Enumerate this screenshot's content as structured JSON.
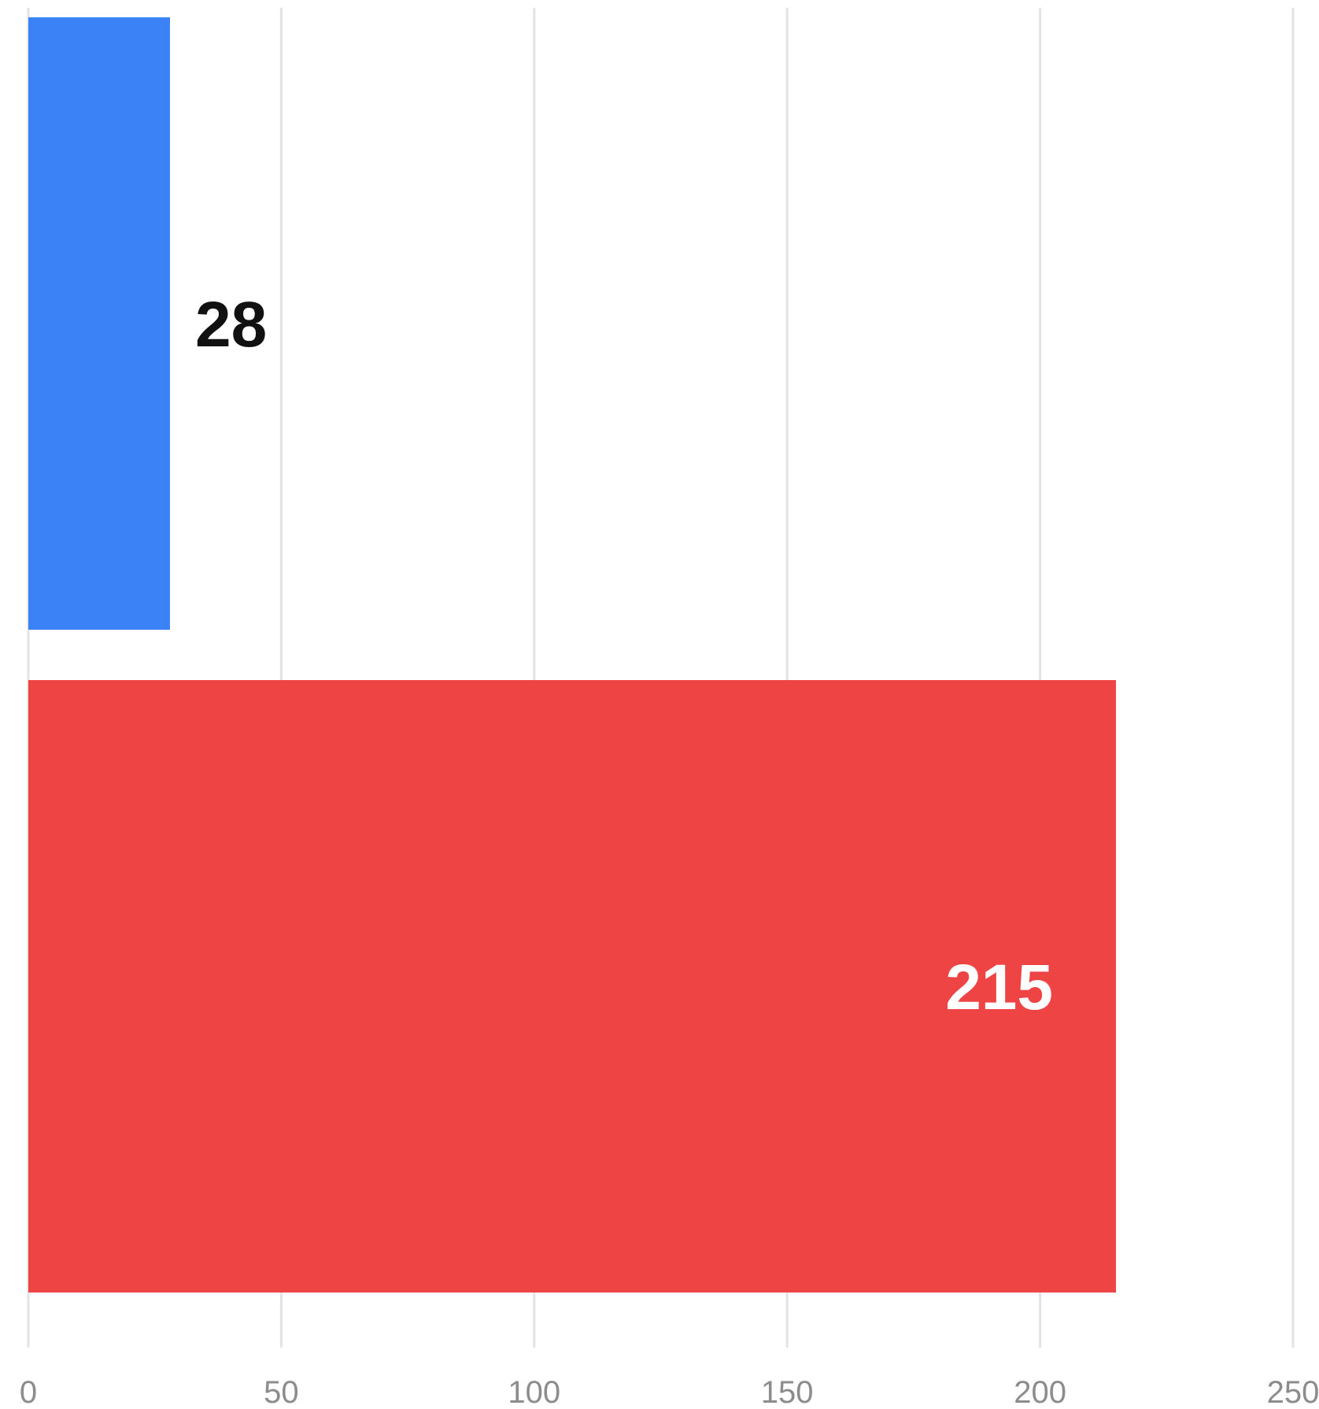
{
  "chart_data": {
    "type": "bar",
    "orientation": "horizontal",
    "title": "",
    "xlabel": "",
    "ylabel": "",
    "xlim": [
      0,
      250
    ],
    "x_ticks": [
      0,
      50,
      100,
      150,
      200,
      250
    ],
    "x_tick_labels": [
      "0",
      "50",
      "100",
      "150",
      "200",
      "250"
    ],
    "grid": "vertical",
    "bars": [
      {
        "value": 28,
        "label": "28",
        "color": "#3b82f6",
        "label_color": "#111111",
        "label_position": "outside"
      },
      {
        "value": 215,
        "label": "215",
        "color": "#ef4444",
        "label_color": "#ffffff",
        "label_position": "inside"
      }
    ]
  }
}
